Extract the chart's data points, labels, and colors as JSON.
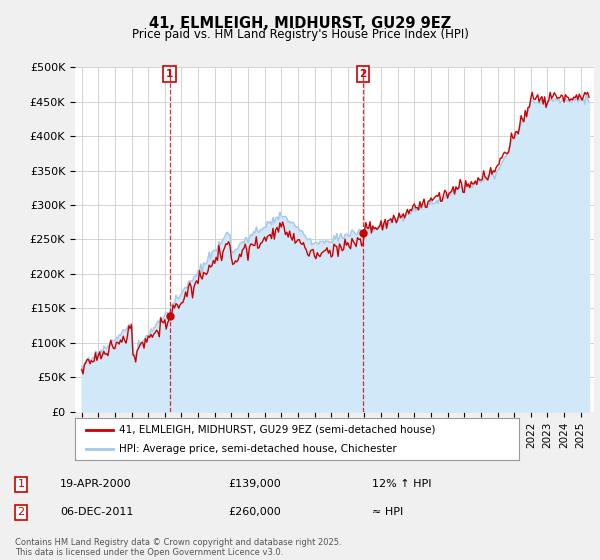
{
  "title": "41, ELMLEIGH, MIDHURST, GU29 9EZ",
  "subtitle": "Price paid vs. HM Land Registry's House Price Index (HPI)",
  "ytick_labels": [
    "£0",
    "£50K",
    "£100K",
    "£150K",
    "£200K",
    "£250K",
    "£300K",
    "£350K",
    "£400K",
    "£450K",
    "£500K"
  ],
  "yticks": [
    0,
    50000,
    100000,
    150000,
    200000,
    250000,
    300000,
    350000,
    400000,
    450000,
    500000
  ],
  "ylim": [
    0,
    500000
  ],
  "hpi_color": "#a8c8e8",
  "hpi_fill_color": "#d0e8f8",
  "price_color": "#cc0000",
  "marker1_year": 2000.29,
  "marker1_value": 139000,
  "marker2_year": 2011.92,
  "marker2_value": 260000,
  "legend1": "41, ELMLEIGH, MIDHURST, GU29 9EZ (semi-detached house)",
  "legend2": "HPI: Average price, semi-detached house, Chichester",
  "note1_label": "1",
  "note1_date": "19-APR-2000",
  "note1_price": "£139,000",
  "note1_hpi": "12% ↑ HPI",
  "note2_label": "2",
  "note2_date": "06-DEC-2011",
  "note2_price": "£260,000",
  "note2_hpi": "≈ HPI",
  "footer": "Contains HM Land Registry data © Crown copyright and database right 2025.\nThis data is licensed under the Open Government Licence v3.0.",
  "background_color": "#f0f0f0",
  "plot_bg_color": "#ffffff",
  "grid_color": "#cccccc"
}
